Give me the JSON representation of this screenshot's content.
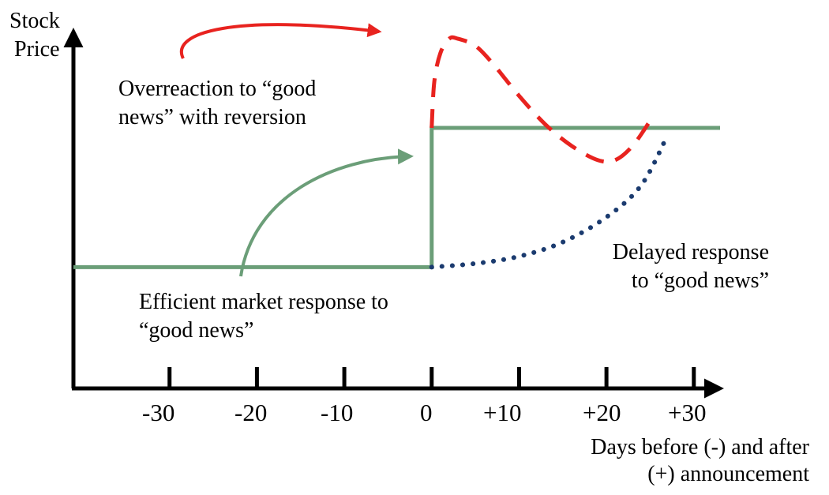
{
  "chart_data": {
    "type": "line",
    "title": "",
    "ylabel": [
      "Stock",
      "Price"
    ],
    "xlabel": [
      "Days before (-) and after",
      "(+) announcement"
    ],
    "xlim": [
      -41,
      33
    ],
    "ylim": [
      0,
      100
    ],
    "x_ticks": [
      -30,
      -20,
      -10,
      0,
      10,
      20,
      30
    ],
    "x_tick_labels": [
      "-30",
      "-20",
      "-10",
      "0",
      "+10",
      "+20",
      "+30"
    ],
    "grid": false,
    "series": [
      {
        "key": "efficient",
        "color": "#6b9e78",
        "style": "solid",
        "x": [
          -41,
          0,
          0,
          33
        ],
        "y": [
          34,
          34,
          73,
          73
        ]
      },
      {
        "key": "overreaction",
        "color": "#e8231f",
        "style": "dashed",
        "x": [
          0,
          0.3,
          1,
          2,
          3,
          5,
          7,
          10,
          13,
          16,
          19,
          21,
          23,
          25
        ],
        "y": [
          73,
          86,
          94,
          98,
          98,
          96,
          91,
          82,
          74,
          68,
          64,
          64,
          68,
          75
        ]
      },
      {
        "key": "delayed",
        "color": "#1b3b6f",
        "style": "dotted",
        "x": [
          0,
          5,
          10,
          15,
          20,
          24,
          27
        ],
        "y": [
          34,
          35,
          37,
          41,
          48,
          57,
          71
        ]
      }
    ],
    "annotations": [
      {
        "key": "overreaction",
        "lines": [
          "Overreaction to “good",
          "news” with reversion"
        ]
      },
      {
        "key": "efficient",
        "lines": [
          "Efficient market response to",
          "“good news”"
        ]
      },
      {
        "key": "delayed",
        "lines": [
          "Delayed response",
          "to “good news”"
        ]
      }
    ]
  }
}
